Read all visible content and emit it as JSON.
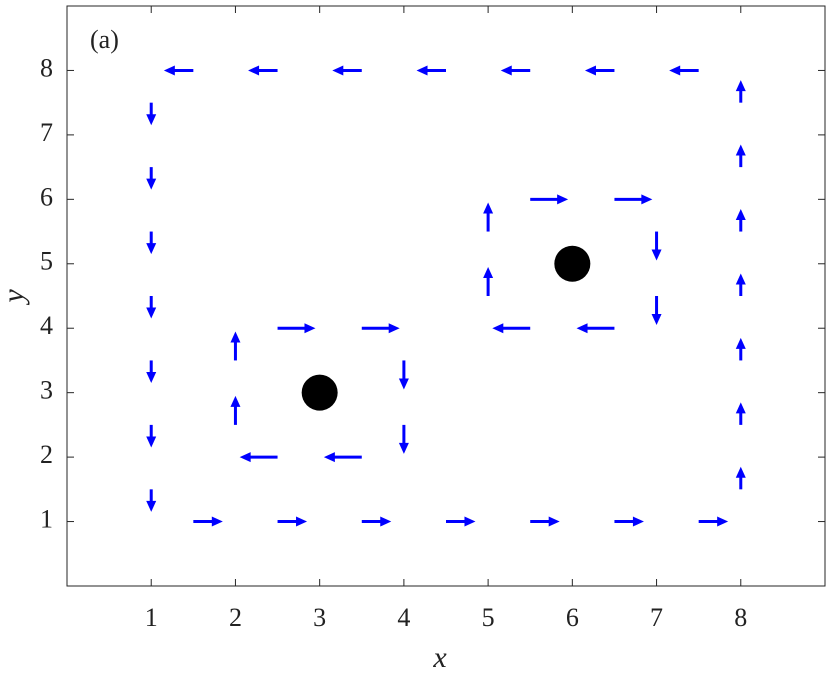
{
  "chart_data": {
    "type": "quiver",
    "annotation": "(a)",
    "xlabel": "x",
    "ylabel": "y",
    "xlim": [
      0,
      9
    ],
    "ylim": [
      0,
      9
    ],
    "xticks": [
      1,
      2,
      3,
      4,
      5,
      6,
      7,
      8
    ],
    "yticks": [
      1,
      2,
      3,
      4,
      5,
      6,
      7,
      8
    ],
    "color": "#0000ff",
    "x": [
      1.5,
      2.5,
      3.5,
      4.5,
      5.5,
      6.5,
      7.5,
      1,
      1,
      1,
      1,
      1,
      1,
      1,
      1.5,
      2.5,
      3.5,
      4.5,
      5.5,
      6.5,
      7.5,
      8,
      8,
      8,
      8,
      8,
      8,
      8,
      2.5,
      3.5,
      4,
      4,
      3.5,
      2.5,
      2,
      2,
      5.5,
      6.5,
      7,
      7,
      6.5,
      5.5,
      5,
      5
    ],
    "y": [
      8,
      8,
      8,
      8,
      8,
      8,
      8,
      7.5,
      6.5,
      5.5,
      4.5,
      3.5,
      2.5,
      1.5,
      1,
      1,
      1,
      1,
      1,
      1,
      1,
      1.5,
      2.5,
      3.5,
      4.5,
      5.5,
      6.5,
      7.5,
      4,
      4,
      3.5,
      2.5,
      2,
      2,
      2.5,
      3.5,
      6,
      6,
      5.5,
      4.5,
      4,
      4,
      4.5,
      5.5
    ],
    "u": [
      -0.35,
      -0.35,
      -0.35,
      -0.35,
      -0.35,
      -0.35,
      -0.35,
      0,
      0,
      0,
      0,
      0,
      0,
      0,
      0.35,
      0.35,
      0.35,
      0.35,
      0.35,
      0.35,
      0.35,
      0,
      0,
      0,
      0,
      0,
      0,
      0,
      0.45,
      0.45,
      0,
      0,
      -0.45,
      -0.45,
      0,
      0,
      0.45,
      0.45,
      0,
      0,
      -0.45,
      -0.45,
      0,
      0
    ],
    "v": [
      0,
      0,
      0,
      0,
      0,
      0,
      0,
      -0.35,
      -0.35,
      -0.35,
      -0.35,
      -0.35,
      -0.35,
      -0.35,
      0,
      0,
      0,
      0,
      0,
      0,
      0,
      0.35,
      0.35,
      0.35,
      0.35,
      0.35,
      0.35,
      0.35,
      0,
      0,
      -0.45,
      -0.45,
      0,
      0,
      0.45,
      0.45,
      0,
      0,
      -0.45,
      -0.45,
      0,
      0,
      0.45,
      0.45
    ],
    "markers": {
      "x": [
        3,
        6
      ],
      "y": [
        3,
        5
      ],
      "color": "#000000"
    }
  }
}
